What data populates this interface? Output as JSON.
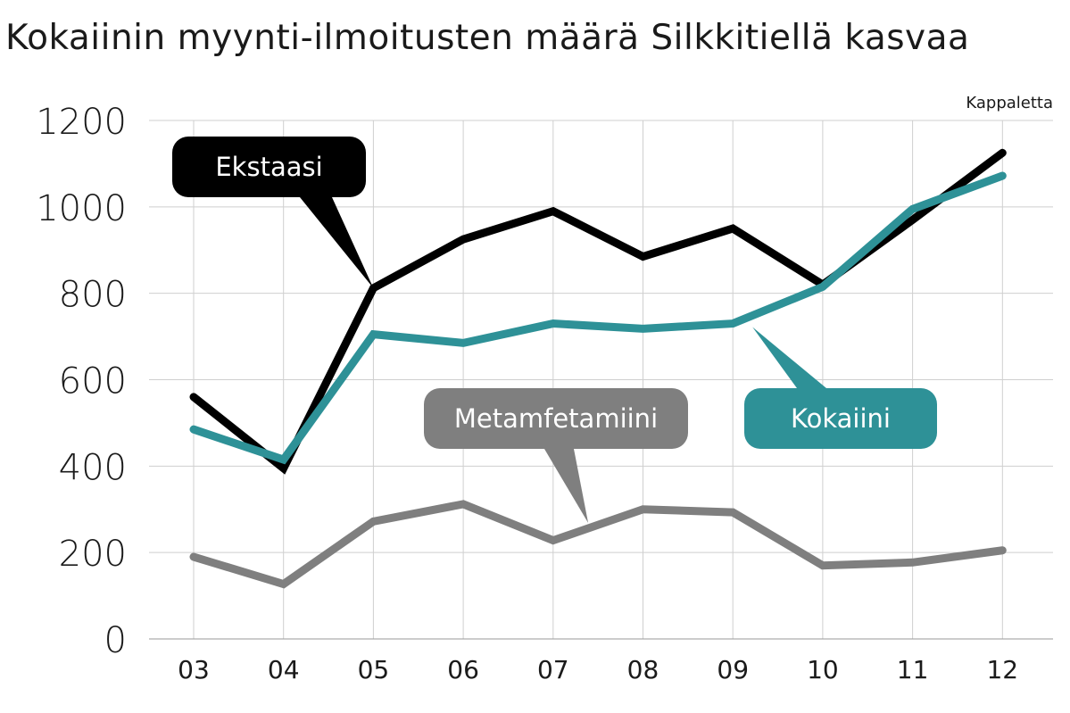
{
  "chart_data": {
    "type": "line",
    "title": "Kokaiinin myynti-ilmoitusten määrä Silkkitiellä kasvaa",
    "unit_label": "Kappaletta",
    "categories": [
      "03",
      "04",
      "05",
      "06",
      "07",
      "08",
      "09",
      "10",
      "11",
      "12"
    ],
    "ylim": [
      0,
      1200
    ],
    "yticks": [
      0,
      200,
      400,
      600,
      800,
      1000,
      1200
    ],
    "grid": true,
    "series": [
      {
        "name": "Ekstaasi",
        "color": "#000000",
        "values": [
          560,
          395,
          812,
          925,
          990,
          885,
          950,
          820,
          970,
          1125
        ]
      },
      {
        "name": "Kokaiini",
        "color": "#2e9197",
        "values": [
          485,
          415,
          705,
          685,
          730,
          718,
          730,
          815,
          995,
          1072
        ]
      },
      {
        "name": "Metamfetamiini",
        "color": "#7f7f7f",
        "values": [
          190,
          127,
          272,
          312,
          228,
          300,
          293,
          170,
          177,
          205
        ]
      }
    ]
  }
}
